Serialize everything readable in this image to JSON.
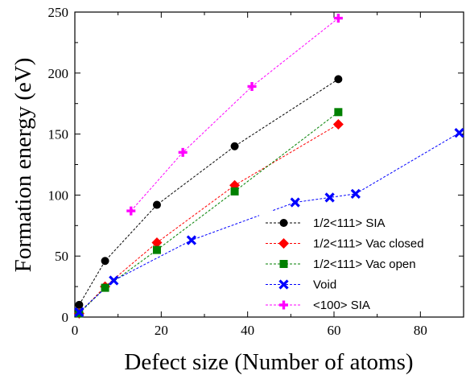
{
  "chart_data": {
    "type": "line",
    "xlabel": "Defect size (Number of atoms)",
    "ylabel": "Formation energy (eV)",
    "xlim": [
      0,
      90
    ],
    "ylim": [
      0,
      250
    ],
    "xticks": [
      0,
      20,
      40,
      60,
      80
    ],
    "yticks": [
      0,
      50,
      100,
      150,
      200,
      250
    ],
    "grid": false,
    "legend_position": "bottom-right",
    "series": [
      {
        "name": "1/2<111> SIA",
        "color": "#000000",
        "marker": "circle",
        "x": [
          1,
          7,
          19,
          37,
          61
        ],
        "y": [
          10,
          46,
          92,
          140,
          195
        ]
      },
      {
        "name": "1/2<111> Vac closed",
        "color": "#ff0000",
        "marker": "diamond",
        "x": [
          1,
          7,
          19,
          37,
          61
        ],
        "y": [
          3,
          25,
          61,
          108,
          158
        ]
      },
      {
        "name": "1/2<111> Vac open",
        "color": "#008000",
        "marker": "square",
        "x": [
          1,
          7,
          19,
          37,
          61
        ],
        "y": [
          3,
          24,
          55,
          103,
          168
        ]
      },
      {
        "name": "Void",
        "color": "#0000ff",
        "marker": "x",
        "x": [
          1,
          9,
          27,
          51,
          59,
          65,
          89
        ],
        "y": [
          4,
          30,
          63,
          94,
          98,
          101,
          151
        ]
      },
      {
        "name": "<100> SIA",
        "color": "#ff00ff",
        "marker": "plus",
        "x": [
          13,
          25,
          41,
          61
        ],
        "y": [
          87,
          135,
          189,
          245
        ]
      }
    ]
  }
}
